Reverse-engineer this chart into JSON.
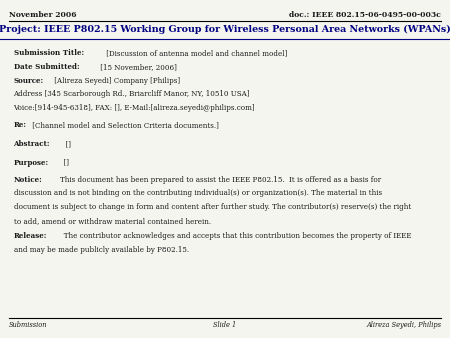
{
  "header_left": "November 2006",
  "header_right": "doc.: IEEE 802.15-06-0495-00-003c",
  "title": "Project: IEEE P802.15 Working Group for Wireless Personal Area Networks (WPANs)",
  "submission_title_bold": "Submission Title:",
  "submission_title_text": " [Discussion of antenna model and channel model]",
  "date_bold": "Date Submitted:",
  "date_text": " [15 November, 2006]",
  "source_bold": "Source:",
  "source_text": " [Alireza Seyedi] Company [Philips]",
  "address_text": "Address [345 Scarborough Rd., Briarcliff Manor, NY, 10510 USA]",
  "voice_text": "Voice:[914-945-6318], FAX: [], E-Mail:[alireza.seyedi@philips.com]",
  "re_bold": "Re:",
  "re_text": " [Channel model and Selection Criteria documents.]",
  "abstract_bold": "Abstract:",
  "abstract_text": "  []",
  "purpose_bold": "Purpose:",
  "purpose_text": "  []",
  "notice_bold": "Notice:",
  "notice_text1": "    This document has been prepared to assist the IEEE P802.15.  It is offered as a basis for",
  "notice_text2": "discussion and is not binding on the contributing individual(s) or organization(s). The material in this",
  "notice_text3": "document is subject to change in form and content after further study. The contributor(s) reserve(s) the right",
  "notice_text4": "to add, amend or withdraw material contained herein.",
  "release_bold": "Release:",
  "release_text1": "   The contributor acknowledges and accepts that this contribution becomes the property of IEEE",
  "release_text2": "and may be made publicly available by P802.15.",
  "footer_left": "Submission",
  "footer_center": "Slide 1",
  "footer_right": "Alireza Seyedi, Philips",
  "bg_color": "#f5f5f0",
  "text_color": "#1a1a1a",
  "title_color": "#000080"
}
